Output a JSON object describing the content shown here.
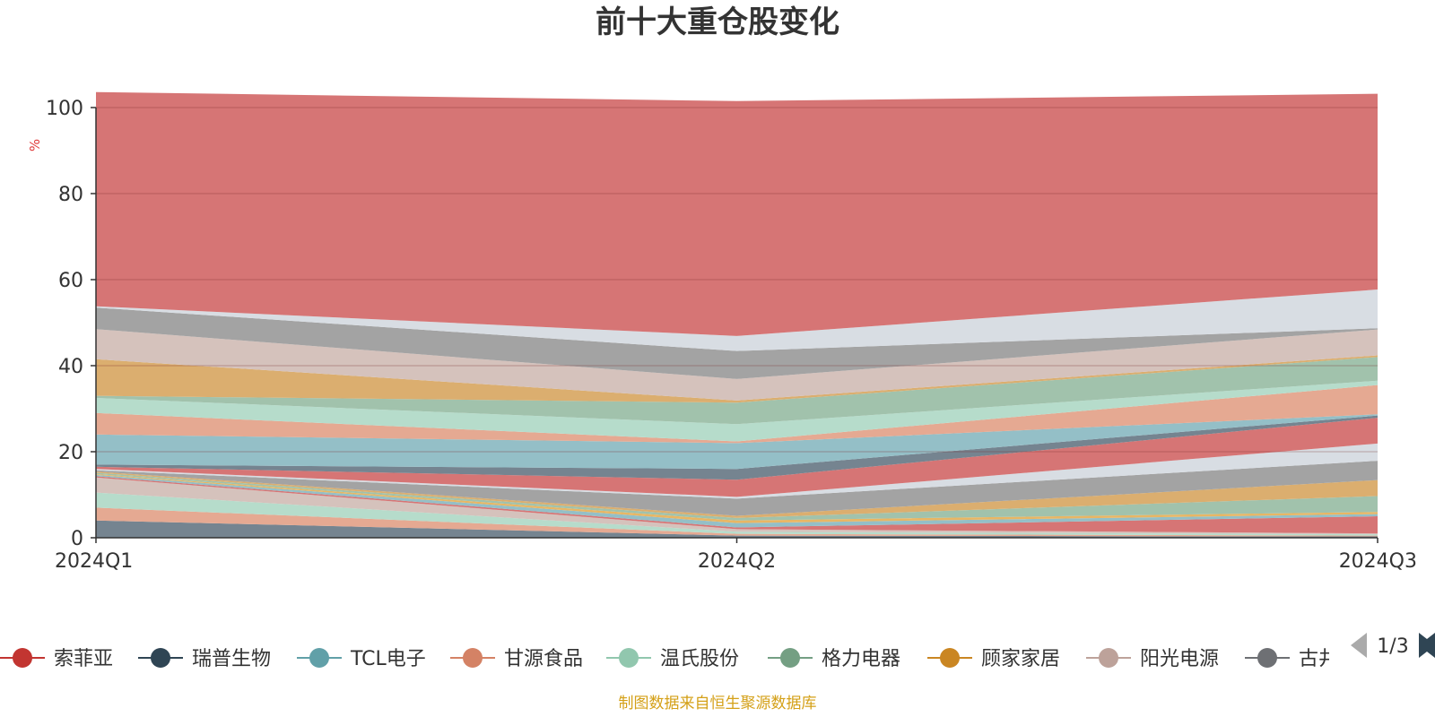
{
  "chart_data": {
    "type": "area",
    "title": "前十大重仓股变化",
    "ylabel": "%",
    "ylim": [
      0,
      100
    ],
    "yticks": [
      0,
      20,
      40,
      60,
      80,
      100
    ],
    "categories": [
      "2024Q1",
      "2024Q2",
      "2024Q3"
    ],
    "stacked": true,
    "grid": true,
    "legend_position": "bottom",
    "legend_page": "1/3",
    "source": "制图数据来自恒生聚源数据库",
    "bands": [
      {
        "color": "#6e7d8a",
        "values": [
          4.0,
          0.5,
          0.3
        ]
      },
      {
        "color": "#e4a48c",
        "values": [
          3.0,
          0.4,
          0.2
        ]
      },
      {
        "color": "#b2dac8",
        "values": [
          3.5,
          0.5,
          0.3
        ]
      },
      {
        "color": "#d3bfb8",
        "values": [
          3.5,
          0.6,
          0.2
        ]
      },
      {
        "color": "#d46e6e",
        "values": [
          0.3,
          0.4,
          4.0
        ]
      },
      {
        "color": "#8ebcc4",
        "values": [
          0.3,
          1.0,
          0.5
        ]
      },
      {
        "color": "#e7b25c",
        "values": [
          0.2,
          0.6,
          0.5
        ]
      },
      {
        "color": "#9cbfa8",
        "values": [
          0.3,
          0.6,
          3.7
        ]
      },
      {
        "color": "#d9aa67",
        "values": [
          0.3,
          0.5,
          3.7
        ]
      },
      {
        "color": "#9e9e9e",
        "values": [
          0.3,
          4.0,
          4.5
        ]
      },
      {
        "color": "#d6dbe2",
        "values": [
          0.3,
          0.4,
          4.0
        ]
      },
      {
        "color": "#d46e6e",
        "values": [
          0.5,
          4.0,
          6.0
        ]
      },
      {
        "color": "#6e7d8a",
        "values": [
          0.5,
          2.5,
          0.5
        ]
      },
      {
        "color": "#8ebcc4",
        "values": [
          7.0,
          6.0,
          0.3
        ]
      },
      {
        "color": "#e4a48c",
        "values": [
          5.0,
          0.4,
          6.8
        ]
      },
      {
        "color": "#b2dac8",
        "values": [
          3.5,
          4.0,
          1.0
        ]
      },
      {
        "color": "#9cbfa8",
        "values": [
          0.5,
          5.0,
          5.5
        ]
      },
      {
        "color": "#d9aa67",
        "values": [
          8.5,
          0.5,
          0.4
        ]
      },
      {
        "color": "#d3bfb8",
        "values": [
          7.0,
          5.0,
          6.0
        ]
      },
      {
        "color": "#9e9e9e",
        "values": [
          5.0,
          6.5,
          0.3
        ]
      },
      {
        "color": "#d6dbe2",
        "values": [
          0.3,
          3.5,
          9.0
        ]
      },
      {
        "color": "#d46e6e",
        "values": [
          49.8,
          54.6,
          45.5
        ]
      }
    ],
    "legend": [
      {
        "name": "索菲亚",
        "color": "#c23531"
      },
      {
        "name": "瑞普生物",
        "color": "#2f4554"
      },
      {
        "name": "TCL电子",
        "color": "#61a0a8"
      },
      {
        "name": "甘源食品",
        "color": "#d48265"
      },
      {
        "name": "温氏股份",
        "color": "#91c7ae"
      },
      {
        "name": "格力电器",
        "color": "#749f83"
      },
      {
        "name": "顾家家居",
        "color": "#ca8622"
      },
      {
        "name": "阳光电源",
        "color": "#bda29a"
      },
      {
        "name": "古井贡酒",
        "color": "#6e7074"
      }
    ]
  },
  "icons": {
    "pager_prev": "triangle-left-icon",
    "pager_next": "triangle-right-icon"
  }
}
